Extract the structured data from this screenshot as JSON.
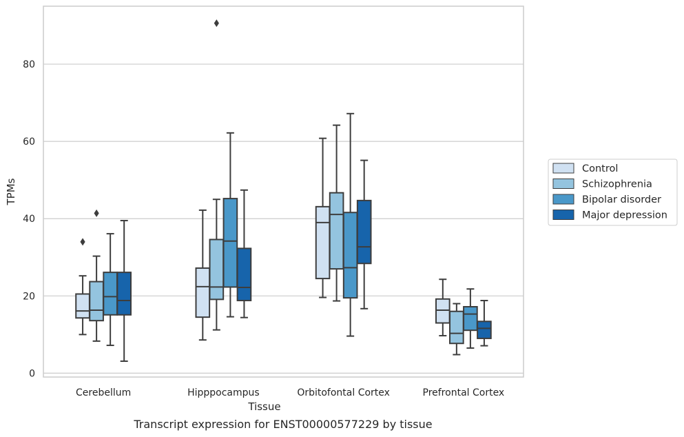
{
  "chart_data": {
    "type": "box",
    "xlabel": "Tissue",
    "ylabel": "TPMs",
    "caption": "Transcript expression for ENST00000577229 by tissue",
    "ylim": [
      -1,
      95
    ],
    "yticks": [
      0,
      20,
      40,
      60,
      80
    ],
    "grid": "horizontal",
    "legend_position": "right",
    "categories": [
      "Cerebellum",
      "Hipppocampus",
      "Orbitofontal Cortex",
      "Prefrontal Cortex"
    ],
    "series": [
      {
        "name": "Control",
        "color": "#d0e1f2",
        "boxes": [
          {
            "whislo": 10.0,
            "q1": 14.3,
            "med": 16.1,
            "q3": 20.5,
            "whishi": 25.2,
            "fliers": [
              34.0
            ]
          },
          {
            "whislo": 8.6,
            "q1": 14.5,
            "med": 22.4,
            "q3": 27.2,
            "whishi": 42.2,
            "fliers": []
          },
          {
            "whislo": 19.6,
            "q1": 24.5,
            "med": 39.0,
            "q3": 43.1,
            "whishi": 60.8,
            "fliers": []
          },
          {
            "whislo": 9.7,
            "q1": 13.0,
            "med": 16.3,
            "q3": 19.2,
            "whishi": 24.3,
            "fliers": []
          }
        ]
      },
      {
        "name": "Schizophrenia",
        "color": "#94c4df",
        "boxes": [
          {
            "whislo": 8.3,
            "q1": 13.6,
            "med": 16.3,
            "q3": 23.7,
            "whishi": 30.3,
            "fliers": [
              41.4
            ]
          },
          {
            "whislo": 11.2,
            "q1": 19.1,
            "med": 22.3,
            "q3": 34.6,
            "whishi": 45.0,
            "fliers": [
              90.6
            ]
          },
          {
            "whislo": 18.7,
            "q1": 27.0,
            "med": 41.1,
            "q3": 46.7,
            "whishi": 64.2,
            "fliers": []
          },
          {
            "whislo": 4.8,
            "q1": 7.7,
            "med": 10.3,
            "q3": 16.0,
            "whishi": 18.0,
            "fliers": []
          }
        ]
      },
      {
        "name": "Bipolar disorder",
        "color": "#4a98c9",
        "boxes": [
          {
            "whislo": 7.2,
            "q1": 15.1,
            "med": 19.8,
            "q3": 26.1,
            "whishi": 36.1,
            "fliers": []
          },
          {
            "whislo": 14.6,
            "q1": 22.3,
            "med": 34.2,
            "q3": 45.2,
            "whishi": 62.2,
            "fliers": []
          },
          {
            "whislo": 9.6,
            "q1": 19.5,
            "med": 27.3,
            "q3": 41.6,
            "whishi": 67.2,
            "fliers": []
          },
          {
            "whislo": 6.5,
            "q1": 11.1,
            "med": 15.3,
            "q3": 17.2,
            "whishi": 21.8,
            "fliers": []
          }
        ]
      },
      {
        "name": "Major depression",
        "color": "#1764ab",
        "boxes": [
          {
            "whislo": 3.1,
            "q1": 15.1,
            "med": 18.8,
            "q3": 26.1,
            "whishi": 39.5,
            "fliers": []
          },
          {
            "whislo": 14.4,
            "q1": 18.8,
            "med": 22.2,
            "q3": 32.3,
            "whishi": 47.4,
            "fliers": []
          },
          {
            "whislo": 16.7,
            "q1": 28.4,
            "med": 32.7,
            "q3": 44.7,
            "whishi": 55.1,
            "fliers": []
          },
          {
            "whislo": 7.1,
            "q1": 9.0,
            "med": 11.6,
            "q3": 13.4,
            "whishi": 18.8,
            "fliers": []
          }
        ]
      }
    ]
  }
}
